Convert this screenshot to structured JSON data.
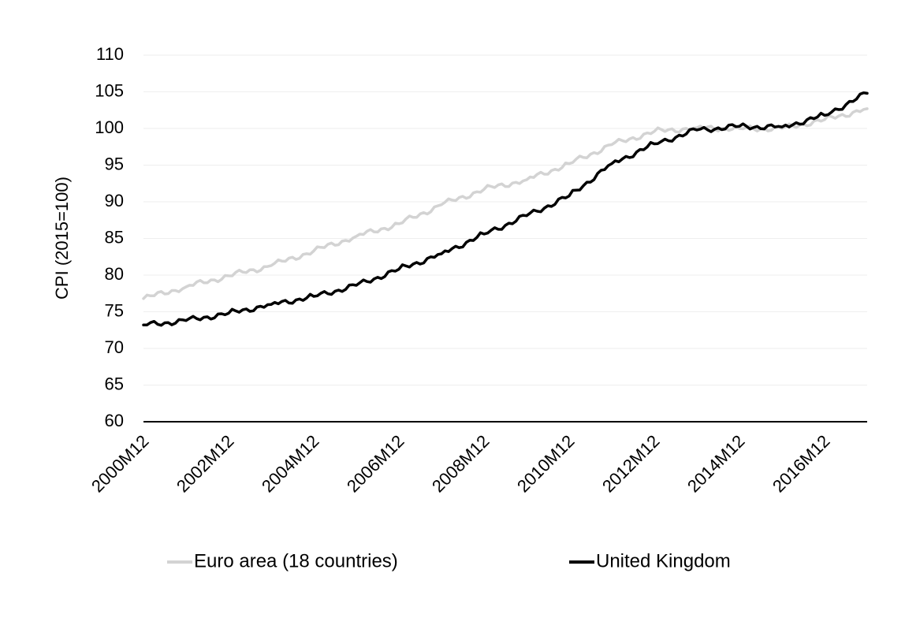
{
  "chart_data": {
    "type": "line",
    "title": "",
    "xlabel": "",
    "ylabel": "CPI (2015=100)",
    "ylim": [
      60,
      110
    ],
    "yticks": [
      60,
      65,
      70,
      75,
      80,
      85,
      90,
      95,
      100,
      105,
      110
    ],
    "x_tick_labels": [
      "2000M12",
      "2002M12",
      "2004M12",
      "2006M12",
      "2008M12",
      "2010M12",
      "2012M12",
      "2014M12",
      "2016M12"
    ],
    "x_start": "2000M12",
    "x_end": "2017M12",
    "grid": true,
    "legend_position": "bottom",
    "x": [
      "2000M12",
      "2001M12",
      "2002M12",
      "2003M12",
      "2004M12",
      "2005M12",
      "2006M12",
      "2007M12",
      "2008M12",
      "2009M12",
      "2010M12",
      "2011M12",
      "2012M12",
      "2013M12",
      "2014M12",
      "2015M12",
      "2016M12",
      "2017M12"
    ],
    "series": [
      {
        "name": "Euro area (18 countries)",
        "color": "#d3d3d3",
        "values": [
          76.8,
          78.4,
          79.9,
          81.3,
          83.3,
          85.3,
          87.0,
          89.6,
          91.7,
          93.0,
          95.2,
          97.8,
          99.6,
          100.1,
          100.0,
          100.0,
          101.2,
          102.7
        ]
      },
      {
        "name": "United Kingdom",
        "color": "#000000",
        "values": [
          73.2,
          73.8,
          74.8,
          76.0,
          77.1,
          78.6,
          80.8,
          82.9,
          85.6,
          88.1,
          90.8,
          95.2,
          97.9,
          99.8,
          100.3,
          100.2,
          101.8,
          104.8
        ]
      }
    ]
  }
}
